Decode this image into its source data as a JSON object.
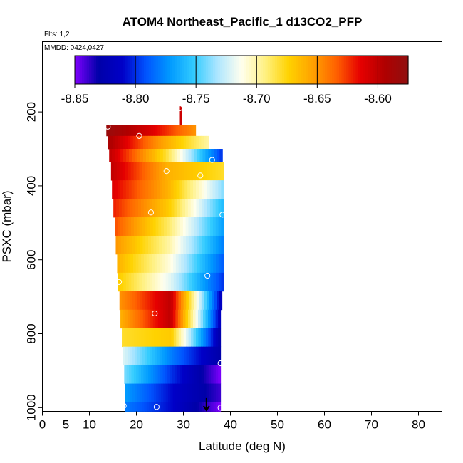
{
  "colors": {
    "palette": [
      "#8000ff",
      "#0000a8",
      "#0000c8",
      "#0055ff",
      "#0099ff",
      "#33ccff",
      "#aee6ff",
      "#ffffee",
      "#fff080",
      "#ffd200",
      "#ffa000",
      "#ff6000",
      "#e60000",
      "#b00000",
      "#901010"
    ],
    "marker": "#ffffff",
    "arrow": "#000000"
  },
  "chart_data": {
    "type": "heatmap",
    "title": "ATOM4 Northeast_Pacific_1 d13CO2_PFP",
    "flights_label": "Flts: 1,2",
    "dates_label": "MMDD: 0424,0427",
    "xlabel": "Latitude (deg N)",
    "ylabel": "PSXC (mbar)",
    "xlim": [
      0,
      85
    ],
    "ylim": [
      1010,
      10
    ],
    "x_tick_values": [
      0,
      5,
      10,
      20,
      30,
      40,
      50,
      60,
      70,
      80
    ],
    "x_tick_labels": [
      "0",
      "5",
      "10",
      "20",
      "30",
      "40",
      "50",
      "60",
      "70",
      "80"
    ],
    "x_minor_ticks": [
      15,
      25,
      35,
      45,
      55,
      65,
      75,
      85
    ],
    "y_tick_values": [
      200,
      400,
      600,
      800,
      1000
    ],
    "y_tick_labels": [
      "200",
      "400",
      "600",
      "800",
      "1000"
    ],
    "colorbar": {
      "min": -8.85,
      "max": -8.575,
      "ticks": [
        -8.85,
        -8.8,
        -8.75,
        -8.7,
        -8.65,
        -8.6
      ],
      "tick_labels": [
        "-8.85",
        "-8.80",
        "-8.75",
        "-8.70",
        "-8.65",
        "-8.60"
      ]
    },
    "bands": [
      {
        "p_top": 185,
        "p_bot": 235,
        "lat_start": 29.1,
        "lat_end": 29.6,
        "v_start": -8.605,
        "v_end": -8.605,
        "v_mid": -8.605
      },
      {
        "p_top": 235,
        "p_bot": 265,
        "lat_start": 13.6,
        "lat_end": 32.6,
        "v_start": -8.58,
        "v_end": -8.65,
        "v_mid": -8.61
      },
      {
        "p_top": 265,
        "p_bot": 300,
        "lat_start": 13.9,
        "lat_end": 35.4,
        "v_start": -8.59,
        "v_end": -8.7,
        "v_mid": -8.65
      },
      {
        "p_top": 300,
        "p_bot": 335,
        "lat_start": 14.2,
        "lat_end": 38.3,
        "v_start": -8.6,
        "v_end": -8.8,
        "v_mid": -8.68
      },
      {
        "p_top": 335,
        "p_bot": 385,
        "lat_start": 14.6,
        "lat_end": 38.6,
        "v_start": -8.6,
        "v_end": -8.68,
        "v_mid": -8.66
      },
      {
        "p_top": 385,
        "p_bot": 435,
        "lat_start": 14.8,
        "lat_end": 38.6,
        "v_start": -8.61,
        "v_end": -8.74,
        "v_mid": -8.66
      },
      {
        "p_top": 435,
        "p_bot": 485,
        "lat_start": 15.1,
        "lat_end": 38.6,
        "v_start": -8.62,
        "v_end": -8.76,
        "v_mid": -8.67
      },
      {
        "p_top": 485,
        "p_bot": 535,
        "lat_start": 15.4,
        "lat_end": 38.6,
        "v_start": -8.63,
        "v_end": -8.77,
        "v_mid": -8.69
      },
      {
        "p_top": 535,
        "p_bot": 585,
        "lat_start": 15.6,
        "lat_end": 38.6,
        "v_start": -8.65,
        "v_end": -8.78,
        "v_mid": -8.7
      },
      {
        "p_top": 585,
        "p_bot": 635,
        "lat_start": 15.9,
        "lat_end": 38.6,
        "v_start": -8.66,
        "v_end": -8.79,
        "v_mid": -8.71
      },
      {
        "p_top": 635,
        "p_bot": 685,
        "lat_start": 16.1,
        "lat_end": 38.6,
        "v_start": -8.67,
        "v_end": -8.8,
        "v_mid": -8.72
      },
      {
        "p_top": 685,
        "p_bot": 735,
        "lat_start": 16.4,
        "lat_end": 38.2,
        "v_start": -8.65,
        "v_end": -8.82,
        "v_mid": -8.6
      },
      {
        "p_top": 735,
        "p_bot": 785,
        "lat_start": 16.6,
        "lat_end": 37.9,
        "v_start": -8.66,
        "v_end": -8.82,
        "v_mid": -8.6
      },
      {
        "p_top": 785,
        "p_bot": 835,
        "lat_start": 16.9,
        "lat_end": 37.9,
        "v_start": -8.68,
        "v_end": -8.83,
        "v_mid": -8.67
      },
      {
        "p_top": 835,
        "p_bot": 885,
        "lat_start": 17.1,
        "lat_end": 37.9,
        "v_start": -8.72,
        "v_end": -8.83,
        "v_mid": -8.78
      },
      {
        "p_top": 885,
        "p_bot": 935,
        "lat_start": 17.4,
        "lat_end": 37.9,
        "v_start": -8.74,
        "v_end": -8.85,
        "v_mid": -8.8
      },
      {
        "p_top": 935,
        "p_bot": 985,
        "lat_start": 17.6,
        "lat_end": 37.9,
        "v_start": -8.77,
        "v_end": -8.84,
        "v_mid": -8.81
      },
      {
        "p_top": 985,
        "p_bot": 1010,
        "lat_start": 17.6,
        "lat_end": 37.9,
        "v_start": -8.78,
        "v_end": -8.85,
        "v_mid": -8.81
      }
    ],
    "sample_points": [
      {
        "lat": 29.2,
        "p": 190
      },
      {
        "lat": 13.9,
        "p": 240
      },
      {
        "lat": 20.6,
        "p": 265
      },
      {
        "lat": 36.1,
        "p": 330
      },
      {
        "lat": 26.4,
        "p": 360
      },
      {
        "lat": 33.6,
        "p": 372
      },
      {
        "lat": 23.1,
        "p": 472
      },
      {
        "lat": 38.3,
        "p": 478
      },
      {
        "lat": 35.1,
        "p": 643
      },
      {
        "lat": 16.3,
        "p": 660
      },
      {
        "lat": 23.9,
        "p": 745
      },
      {
        "lat": 37.9,
        "p": 880
      },
      {
        "lat": 17.3,
        "p": 995
      },
      {
        "lat": 24.3,
        "p": 998
      },
      {
        "lat": 37.9,
        "p": 1000
      }
    ],
    "arrow": {
      "lat": 34.9,
      "p": 1005
    }
  }
}
